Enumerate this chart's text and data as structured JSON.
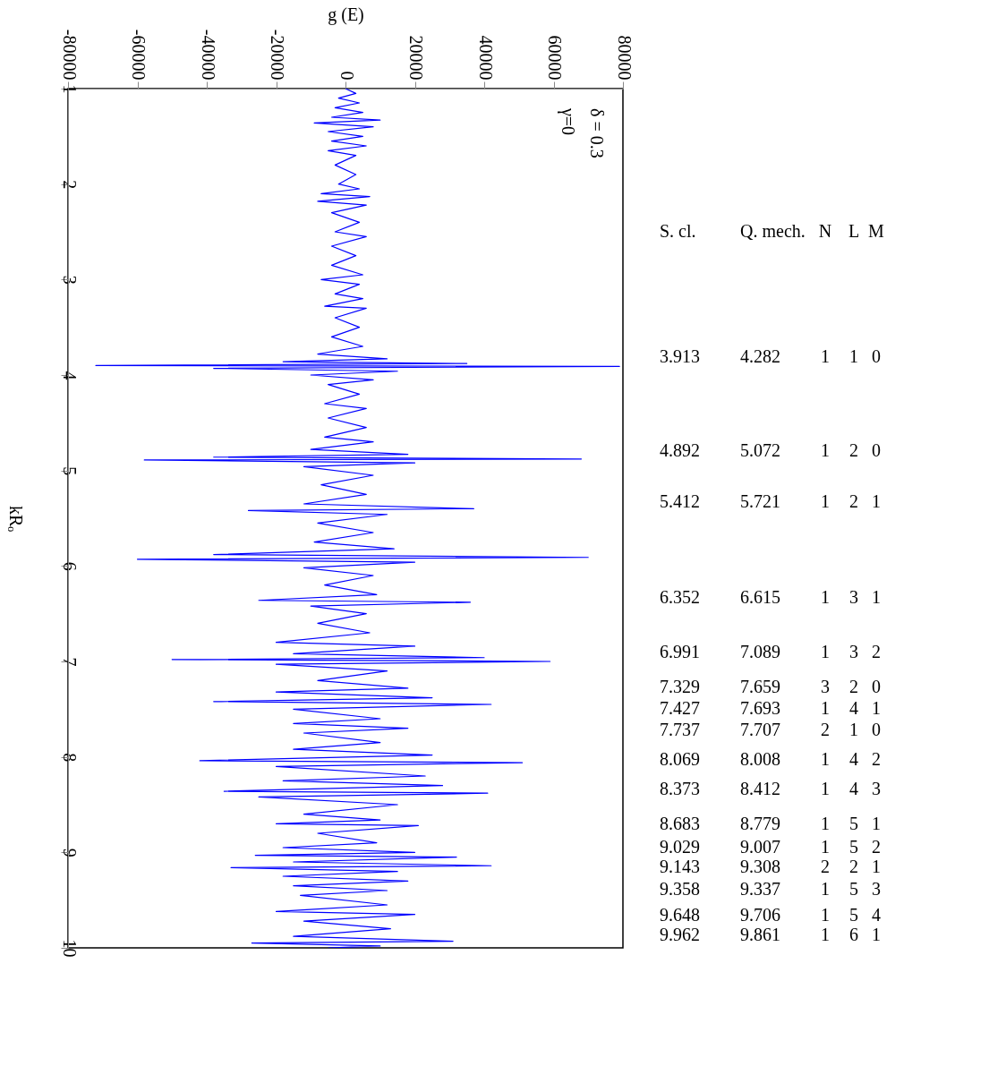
{
  "chart_data": {
    "type": "line",
    "xlabel": "g (E)",
    "ylabel": "kRₒ",
    "ylim": [
      10,
      1
    ],
    "yticks": [
      1,
      2,
      3,
      4,
      5,
      6,
      7,
      8,
      9,
      10
    ],
    "xlim": [
      -80000,
      80000
    ],
    "xticks": [
      -80000,
      -60000,
      -40000,
      -20000,
      0,
      20000,
      40000,
      60000,
      80000
    ],
    "grid": false,
    "series": [
      {
        "color": "#0000ff",
        "values": [
          1.0,
          1.05,
          1.1,
          1.15,
          1.2,
          1.25,
          1.3,
          1.33,
          1.36,
          1.4,
          1.45,
          1.5,
          1.55,
          1.6,
          1.65,
          1.7,
          1.8,
          1.9,
          2.0,
          2.05,
          2.1,
          2.13,
          2.18,
          2.22,
          2.3,
          2.4,
          2.5,
          2.55,
          2.65,
          2.75,
          2.85,
          2.95,
          3.0,
          3.05,
          3.15,
          3.2,
          3.28,
          3.3,
          3.4,
          3.5,
          3.6,
          3.7,
          3.78,
          3.83,
          3.86,
          3.88,
          3.9,
          3.91,
          3.93,
          3.96,
          4.0,
          4.05,
          4.1,
          4.2,
          4.3,
          4.35,
          4.45,
          4.55,
          4.65,
          4.7,
          4.78,
          4.83,
          4.86,
          4.88,
          4.89,
          4.92,
          4.96,
          5.05,
          5.15,
          5.25,
          5.35,
          5.4,
          5.42,
          5.46,
          5.55,
          5.65,
          5.75,
          5.82,
          5.88,
          5.91,
          5.93,
          5.96,
          6.02,
          6.1,
          6.2,
          6.3,
          6.36,
          6.38,
          6.42,
          6.5,
          6.6,
          6.7,
          6.8,
          6.84,
          6.92,
          6.96,
          6.98,
          7.0,
          7.03,
          7.1,
          7.2,
          7.28,
          7.32,
          7.38,
          7.42,
          7.45,
          7.5,
          7.6,
          7.65,
          7.7,
          7.75,
          7.85,
          7.92,
          7.98,
          8.04,
          8.06,
          8.1,
          8.2,
          8.25,
          8.3,
          8.36,
          8.38,
          8.42,
          8.5,
          8.6,
          8.66,
          8.7,
          8.72,
          8.8,
          8.9,
          8.95,
          9.0,
          9.03,
          9.05,
          9.1,
          9.14,
          9.16,
          9.2,
          9.25,
          9.3,
          9.35,
          9.4,
          9.45,
          9.55,
          9.62,
          9.65,
          9.72,
          9.8,
          9.88,
          9.93,
          9.95,
          9.98,
          10.0
        ],
        "x": [
          0,
          3000,
          -2000,
          4000,
          -3000,
          5000,
          -4000,
          10000,
          -9000,
          8000,
          -5000,
          5000,
          -4000,
          6000,
          -5000,
          3000,
          -3000,
          3000,
          -2000,
          4000,
          -7000,
          7000,
          -8000,
          6000,
          -4000,
          4000,
          -3000,
          6000,
          -4000,
          3000,
          -4000,
          5000,
          -7000,
          4000,
          -3000,
          5000,
          -6000,
          6000,
          -3000,
          4000,
          -4000,
          5000,
          -8000,
          12000,
          -18000,
          35000,
          -72000,
          79000,
          -38000,
          15000,
          -10000,
          8000,
          -5000,
          4000,
          -6000,
          6000,
          -5000,
          6000,
          -6000,
          8000,
          -10000,
          18000,
          -38000,
          68000,
          -58000,
          20000,
          -12000,
          8000,
          -7000,
          6000,
          -12000,
          37000,
          -28000,
          12000,
          -8000,
          8000,
          -9000,
          14000,
          -38000,
          70000,
          -60000,
          20000,
          -12000,
          8000,
          -6000,
          9000,
          -25000,
          36000,
          -10000,
          6000,
          -8000,
          7000,
          -20000,
          20000,
          -15000,
          40000,
          -50000,
          59000,
          -20000,
          12000,
          -8000,
          18000,
          -20000,
          25000,
          -38000,
          42000,
          -15000,
          10000,
          -15000,
          18000,
          -12000,
          10000,
          -15000,
          25000,
          -42000,
          51000,
          -20000,
          23000,
          -18000,
          28000,
          -35000,
          41000,
          -25000,
          15000,
          -12000,
          10000,
          -20000,
          21000,
          -8000,
          9000,
          -18000,
          20000,
          -26000,
          32000,
          -15000,
          42000,
          -33000,
          15000,
          -18000,
          18000,
          -15000,
          12000,
          -13000,
          12000,
          -20000,
          20000,
          -12000,
          13000,
          -15000,
          31000,
          -27000,
          10000,
          -5000
        ]
      }
    ],
    "annotations": [
      "δ = 0.3",
      "γ=0",
      "S. cl.",
      "Q. mech.",
      "N",
      "L",
      "M",
      "3.913",
      "4.282",
      "1",
      "1",
      "0",
      "4.892",
      "5.072",
      "1",
      "2",
      "0",
      "5.412",
      "5.721",
      "1",
      "2",
      "1",
      "6.352",
      "6.615",
      "1",
      "3",
      "1",
      "6.991",
      "7.089",
      "1",
      "3",
      "2",
      "7.329",
      "7.659",
      "3",
      "2",
      "0",
      "7.427",
      "7.693",
      "1",
      "4",
      "1",
      "7.737",
      "7.707",
      "2",
      "1",
      "0",
      "8.069",
      "8.008",
      "1",
      "4",
      "2",
      "8.373",
      "8.412",
      "1",
      "4",
      "3",
      "8.683",
      "8.779",
      "1",
      "5",
      "1",
      "9.029",
      "9.007",
      "1",
      "5",
      "2",
      "9.143",
      "9.308",
      "2",
      "2",
      "1",
      "9.358",
      "9.337",
      "1",
      "5",
      "3",
      "9.648",
      "9.706",
      "1",
      "5",
      "4",
      "9.962",
      "9.861",
      "1",
      "6",
      "1"
    ]
  }
}
